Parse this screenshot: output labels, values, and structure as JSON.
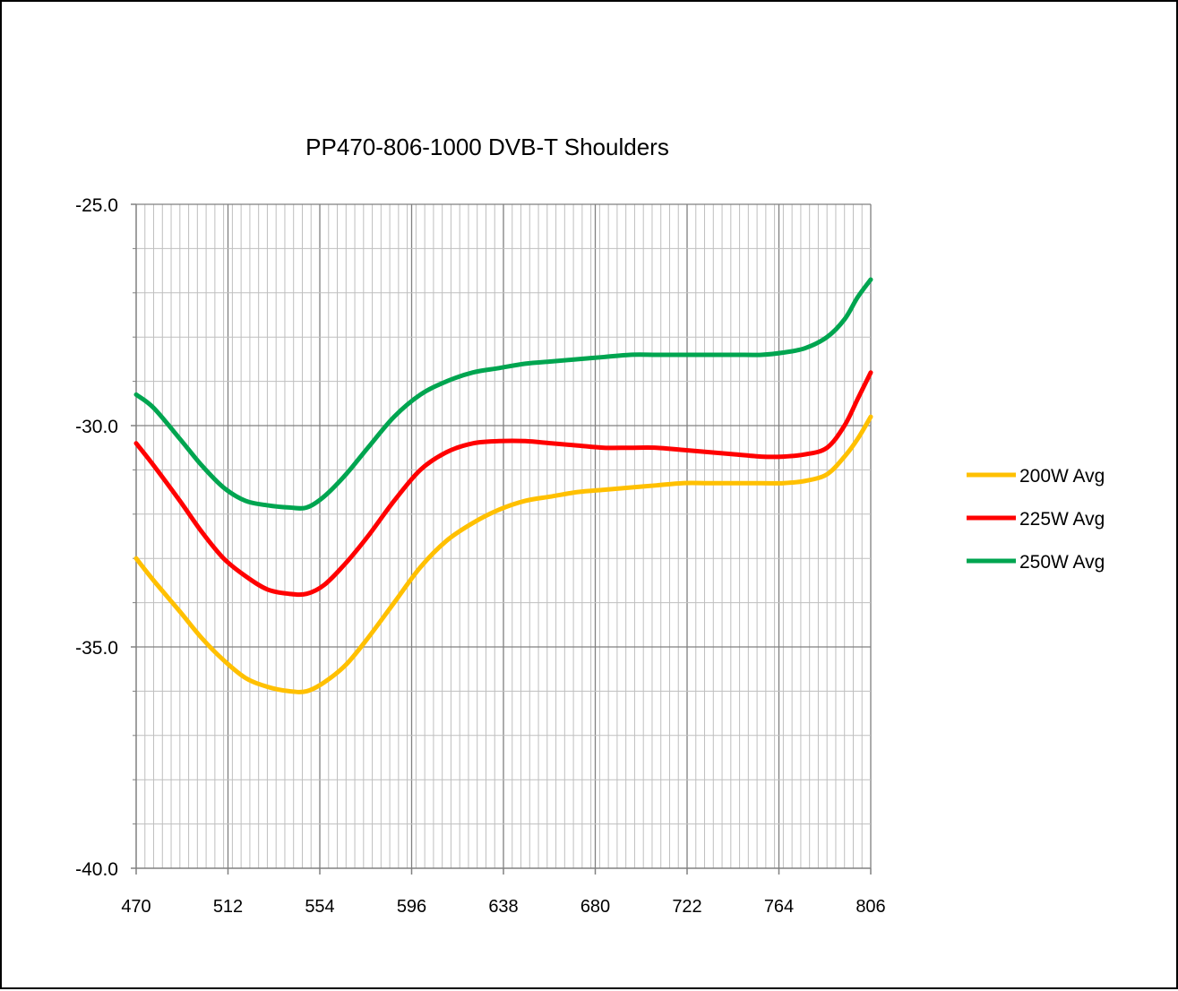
{
  "chart_data": {
    "type": "line",
    "title": "PP470-806-1000 DVB-T Shoulders",
    "xlabel": "",
    "ylabel": "",
    "xlim": [
      470,
      806
    ],
    "ylim": [
      -40,
      -25
    ],
    "x_ticks": [
      "470",
      "512",
      "554",
      "596",
      "638",
      "680",
      "722",
      "764",
      "806"
    ],
    "y_ticks": [
      "-25.0",
      "-30.0",
      "-35.0",
      "-40.0"
    ],
    "grid": true,
    "legend_position": "right",
    "x": [
      470,
      478,
      490,
      500,
      510,
      520,
      530,
      540,
      548,
      556,
      566,
      576,
      588,
      600,
      612,
      624,
      636,
      648,
      660,
      672,
      684,
      696,
      708,
      720,
      732,
      744,
      756,
      766,
      776,
      786,
      794,
      800,
      806
    ],
    "series": [
      {
        "name": "200W Avg",
        "color": "#FFC000",
        "values": [
          -33.0,
          -33.5,
          -34.2,
          -34.8,
          -35.3,
          -35.7,
          -35.9,
          -36.0,
          -36.0,
          -35.8,
          -35.4,
          -34.8,
          -34.0,
          -33.2,
          -32.6,
          -32.2,
          -31.9,
          -31.7,
          -31.6,
          -31.5,
          -31.45,
          -31.4,
          -31.35,
          -31.3,
          -31.3,
          -31.3,
          -31.3,
          -31.3,
          -31.25,
          -31.1,
          -30.7,
          -30.3,
          -29.8
        ]
      },
      {
        "name": "225W Avg",
        "color": "#FF0000",
        "values": [
          -30.4,
          -30.9,
          -31.7,
          -32.4,
          -33.0,
          -33.4,
          -33.7,
          -33.8,
          -33.8,
          -33.6,
          -33.1,
          -32.5,
          -31.7,
          -31.0,
          -30.6,
          -30.4,
          -30.35,
          -30.35,
          -30.4,
          -30.45,
          -30.5,
          -30.5,
          -30.5,
          -30.55,
          -30.6,
          -30.65,
          -30.7,
          -30.7,
          -30.65,
          -30.5,
          -30.0,
          -29.4,
          -28.8
        ]
      },
      {
        "name": "250W Avg",
        "color": "#00A550",
        "values": [
          -29.3,
          -29.6,
          -30.3,
          -30.9,
          -31.4,
          -31.7,
          -31.8,
          -31.85,
          -31.85,
          -31.6,
          -31.1,
          -30.5,
          -29.8,
          -29.3,
          -29.0,
          -28.8,
          -28.7,
          -28.6,
          -28.55,
          -28.5,
          -28.45,
          -28.4,
          -28.4,
          -28.4,
          -28.4,
          -28.4,
          -28.4,
          -28.35,
          -28.25,
          -28.0,
          -27.6,
          -27.1,
          -26.7
        ]
      }
    ]
  }
}
